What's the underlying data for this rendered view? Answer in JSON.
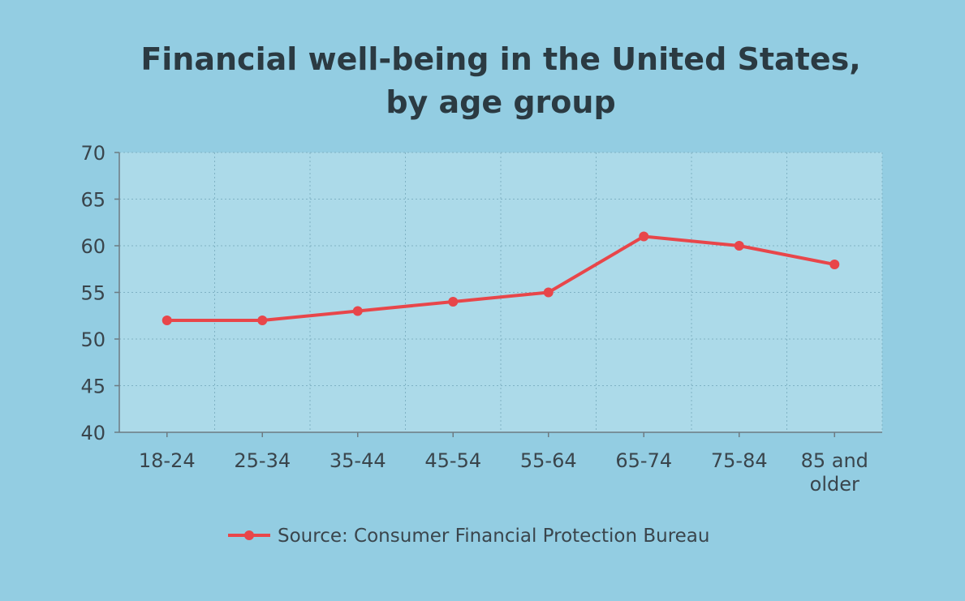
{
  "chart_data": {
    "type": "line",
    "title_lines": [
      "Financial well-being in the United States,",
      "by age group"
    ],
    "categories": [
      "18-24",
      "25-34",
      "35-44",
      "45-54",
      "55-64",
      "65-74",
      "75-84",
      "85 and older"
    ],
    "category_lines": [
      [
        "18-24"
      ],
      [
        "25-34"
      ],
      [
        "35-44"
      ],
      [
        "45-54"
      ],
      [
        "55-64"
      ],
      [
        "65-74"
      ],
      [
        "75-84"
      ],
      [
        "85 and",
        "older"
      ]
    ],
    "series": [
      {
        "name": "Source: Consumer Financial Protection Bureau",
        "values": [
          52,
          52,
          53,
          54,
          55,
          61,
          60,
          58
        ]
      }
    ],
    "ylim": [
      40,
      70
    ],
    "yticks": [
      40,
      45,
      50,
      55,
      60,
      65,
      70
    ],
    "xlabel": "",
    "ylabel": "",
    "grid": true,
    "legend_position": "bottom-center",
    "colors": {
      "background": "#93cde2",
      "plot_area": "#acdae9",
      "series": "#e8464a",
      "grid": "#7fb2c4",
      "axis": "#6d7b82"
    }
  }
}
